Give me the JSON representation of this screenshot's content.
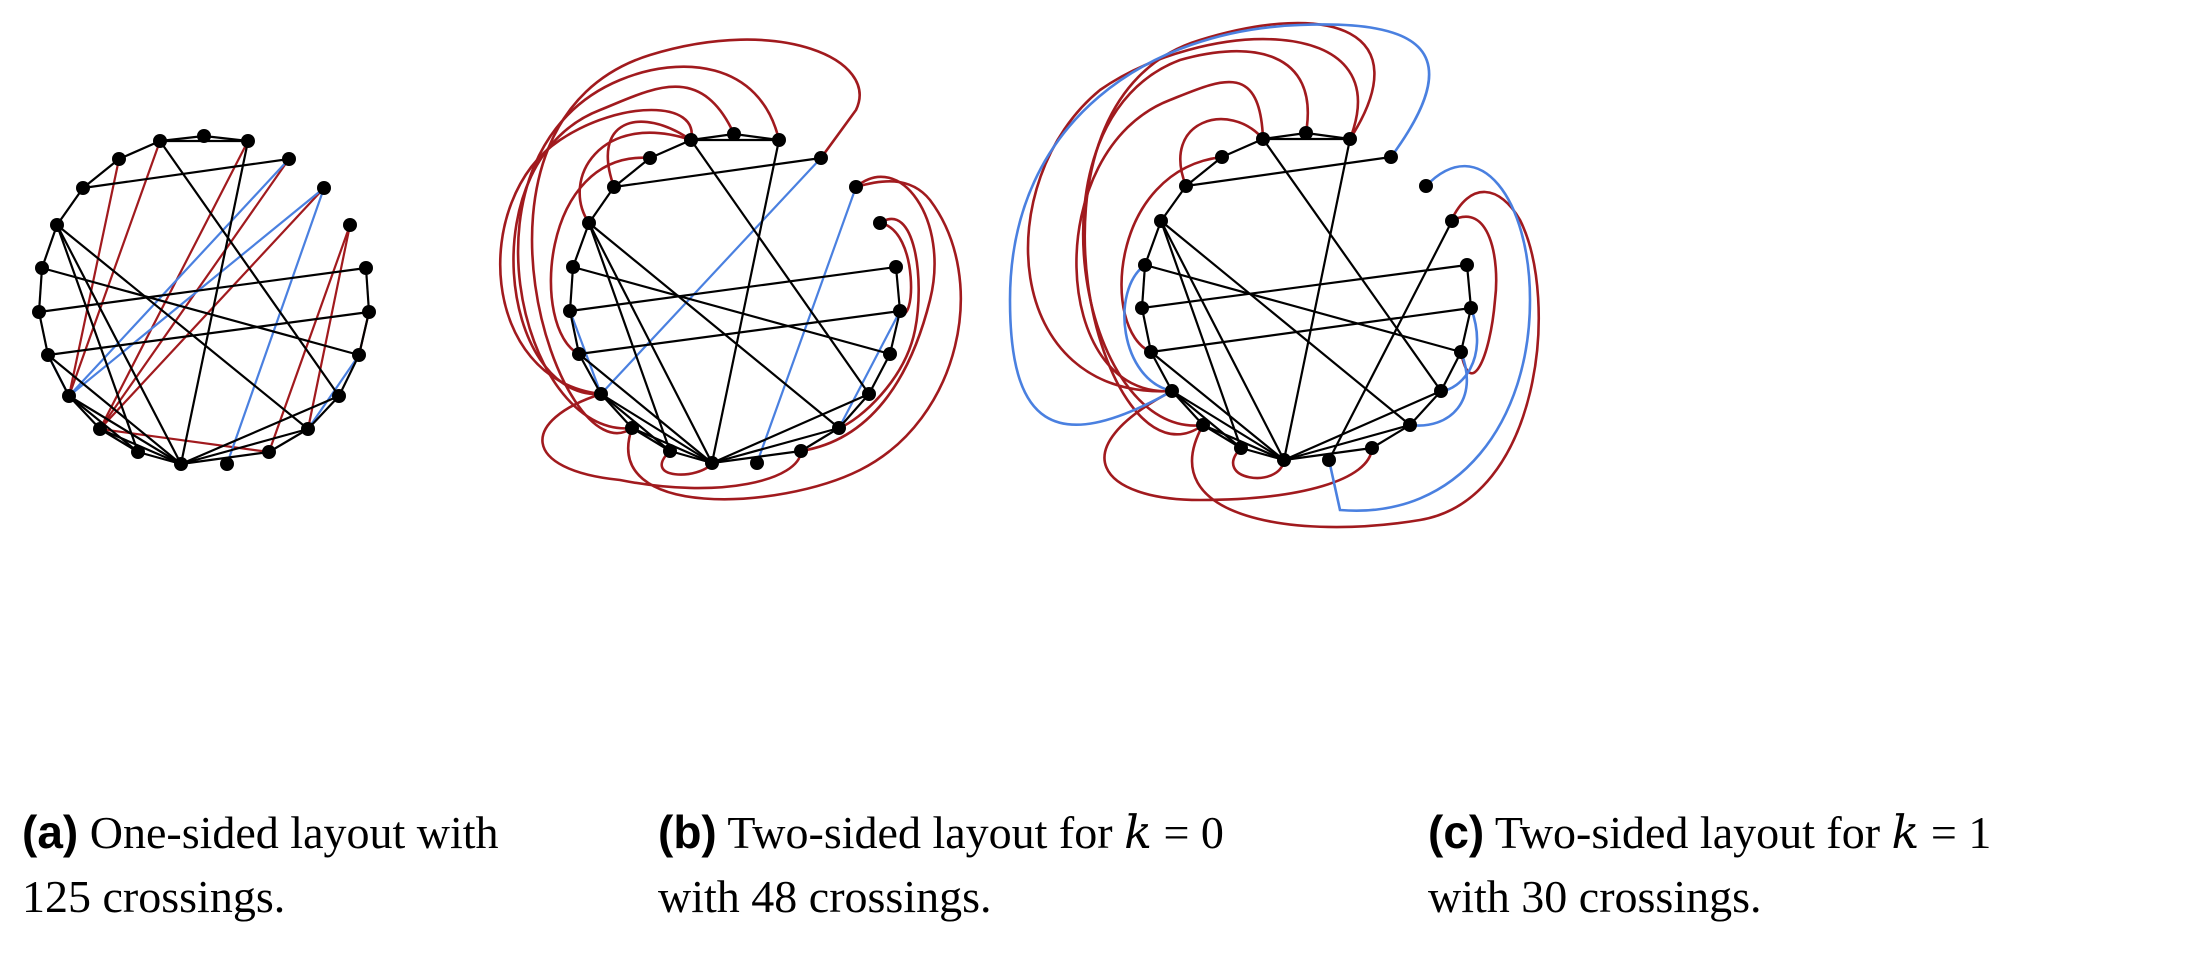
{
  "colors": {
    "edge_black": "#000000",
    "edge_red": "#a11a1e",
    "edge_blue": "#4a80e0",
    "vertex": "#000000"
  },
  "captions": {
    "a": {
      "tag": "(a)",
      "text_1": "One-sided layout with",
      "text_2": "125 crossings."
    },
    "b": {
      "tag": "(b)",
      "text_1": "Two-sided layout for ",
      "var": "k",
      "eq": " = 0",
      "text_2": "with 48 crossings."
    },
    "c": {
      "tag": "(c)",
      "text_1": "Two-sided layout for ",
      "var": "k",
      "eq": " = 1",
      "text_2": "with 30 crossings."
    }
  }
}
